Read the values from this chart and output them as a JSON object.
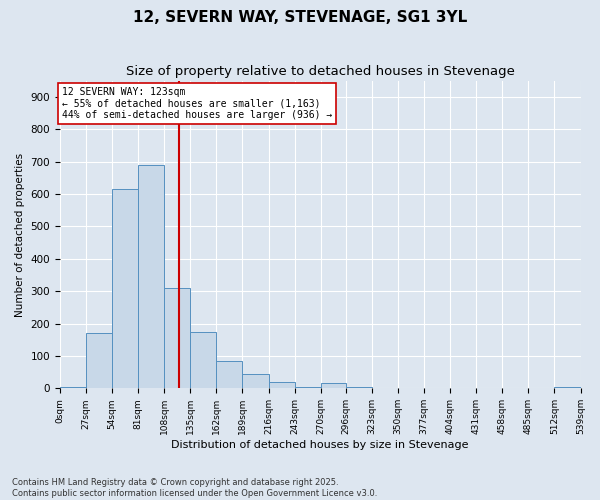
{
  "title": "12, SEVERN WAY, STEVENAGE, SG1 3YL",
  "subtitle": "Size of property relative to detached houses in Stevenage",
  "xlabel": "Distribution of detached houses by size in Stevenage",
  "ylabel": "Number of detached properties",
  "bin_edges": [
    0,
    27,
    54,
    81,
    108,
    135,
    162,
    189,
    216,
    243,
    270,
    296,
    323,
    350,
    377,
    404,
    431,
    458,
    485,
    512,
    539
  ],
  "bar_heights": [
    5,
    170,
    615,
    690,
    310,
    175,
    85,
    45,
    20,
    5,
    15,
    5,
    0,
    0,
    0,
    0,
    0,
    0,
    0,
    5
  ],
  "bar_color": "#c8d8e8",
  "bar_edge_color": "#5590c0",
  "property_size": 123,
  "property_label": "12 SEVERN WAY: 123sqm",
  "annotation_line1": "← 55% of detached houses are smaller (1,163)",
  "annotation_line2": "44% of semi-detached houses are larger (936) →",
  "vline_color": "#cc0000",
  "footer1": "Contains HM Land Registry data © Crown copyright and database right 2025.",
  "footer2": "Contains public sector information licensed under the Open Government Licence v3.0.",
  "ylim": [
    0,
    950
  ],
  "yticks": [
    0,
    100,
    200,
    300,
    400,
    500,
    600,
    700,
    800,
    900
  ],
  "bg_color": "#dde6f0",
  "grid_color": "#ffffff",
  "title_fontsize": 11,
  "subtitle_fontsize": 9.5
}
